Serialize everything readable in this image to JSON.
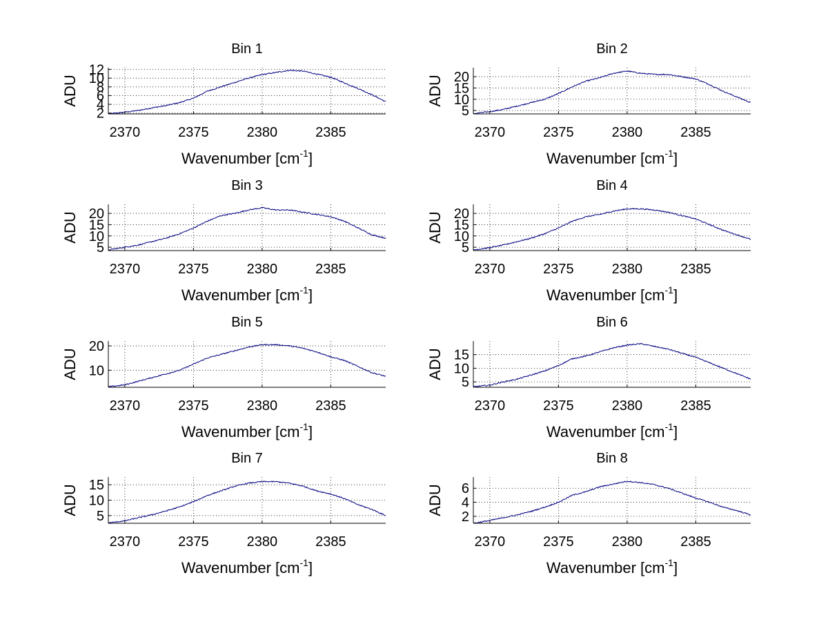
{
  "chart_data": [
    {
      "type": "line",
      "title": "Bin 1",
      "xlabel": "Wavenumber [cm",
      "xlabel_superscript": "-1",
      "xlabel_suffix": "]",
      "ylabel": "ADU",
      "xlim": [
        2368.8,
        2389
      ],
      "ylim": [
        1.8,
        12.4
      ],
      "xticks": [
        2370,
        2375,
        2380,
        2385
      ],
      "yticks": [
        2,
        4,
        6,
        8,
        10,
        12
      ],
      "grid": true,
      "series": [
        {
          "name": "Bin 1",
          "color": "#000080",
          "x": [
            2368.8,
            2370,
            2371,
            2372,
            2373,
            2374,
            2375,
            2376,
            2377,
            2378,
            2379,
            2380,
            2381,
            2382,
            2383,
            2384,
            2385,
            2386,
            2387,
            2388,
            2389
          ],
          "y": [
            1.8,
            2.2,
            2.6,
            3.2,
            3.7,
            4.4,
            5.4,
            7.0,
            8.0,
            9.0,
            10.0,
            10.8,
            11.3,
            11.8,
            11.6,
            10.9,
            10.2,
            8.9,
            7.6,
            6.2,
            4.6
          ]
        }
      ]
    },
    {
      "type": "line",
      "title": "Bin 2",
      "xlabel": "Wavenumber [cm",
      "xlabel_superscript": "-1",
      "xlabel_suffix": "]",
      "ylabel": "ADU",
      "xlim": [
        2368.8,
        2389
      ],
      "ylim": [
        3.5,
        24
      ],
      "xticks": [
        2370,
        2375,
        2380,
        2385
      ],
      "yticks": [
        5,
        10,
        15,
        20
      ],
      "grid": true,
      "series": [
        {
          "name": "Bin 2",
          "color": "#000080",
          "x": [
            2368.8,
            2370,
            2371,
            2372,
            2373,
            2374,
            2375,
            2376,
            2377,
            2378,
            2379,
            2380,
            2381,
            2382,
            2383,
            2384,
            2385,
            2386,
            2387,
            2388,
            2389
          ],
          "y": [
            3.6,
            4.5,
            5.5,
            7.0,
            8.5,
            10.0,
            12.5,
            15.5,
            18.0,
            19.5,
            21.5,
            22.5,
            21.5,
            21.0,
            21.0,
            20.0,
            19.0,
            16.5,
            13.5,
            11.0,
            8.5
          ]
        }
      ]
    },
    {
      "type": "line",
      "title": "Bin 3",
      "xlabel": "Wavenumber [cm",
      "xlabel_superscript": "-1",
      "xlabel_suffix": "]",
      "ylabel": "ADU",
      "xlim": [
        2368.8,
        2389
      ],
      "ylim": [
        3.5,
        24
      ],
      "xticks": [
        2370,
        2375,
        2380,
        2385
      ],
      "yticks": [
        5,
        10,
        15,
        20
      ],
      "grid": true,
      "series": [
        {
          "name": "Bin 3",
          "color": "#000080",
          "x": [
            2368.8,
            2370,
            2371,
            2372,
            2373,
            2374,
            2375,
            2376,
            2377,
            2378,
            2379,
            2380,
            2381,
            2382,
            2383,
            2384,
            2385,
            2386,
            2387,
            2388,
            2389
          ],
          "y": [
            3.8,
            5.0,
            6.0,
            7.5,
            9.0,
            11.0,
            13.5,
            16.5,
            19.0,
            20.0,
            21.5,
            22.5,
            21.5,
            21.5,
            20.5,
            19.5,
            18.5,
            16.5,
            13.5,
            10.5,
            9.0
          ]
        }
      ]
    },
    {
      "type": "line",
      "title": "Bin 4",
      "xlabel": "Wavenumber [cm",
      "xlabel_superscript": "-1",
      "xlabel_suffix": "]",
      "ylabel": "ADU",
      "xlim": [
        2368.8,
        2389
      ],
      "ylim": [
        3.5,
        24
      ],
      "xticks": [
        2370,
        2375,
        2380,
        2385
      ],
      "yticks": [
        5,
        10,
        15,
        20
      ],
      "grid": true,
      "series": [
        {
          "name": "Bin 4",
          "color": "#000080",
          "x": [
            2368.8,
            2370,
            2371,
            2372,
            2373,
            2374,
            2375,
            2376,
            2377,
            2378,
            2379,
            2380,
            2381,
            2382,
            2383,
            2384,
            2385,
            2386,
            2387,
            2388,
            2389
          ],
          "y": [
            3.8,
            4.8,
            6.0,
            7.5,
            9.0,
            11.0,
            13.5,
            16.5,
            18.5,
            19.5,
            21.0,
            22.0,
            22.0,
            21.5,
            20.5,
            19.0,
            17.5,
            15.0,
            12.5,
            10.5,
            8.5
          ]
        }
      ]
    },
    {
      "type": "line",
      "title": "Bin 5",
      "xlabel": "Wavenumber [cm",
      "xlabel_superscript": "-1",
      "xlabel_suffix": "]",
      "ylabel": "ADU",
      "xlim": [
        2368.8,
        2389
      ],
      "ylim": [
        3,
        22
      ],
      "xticks": [
        2370,
        2375,
        2380,
        2385
      ],
      "yticks": [
        10,
        20
      ],
      "grid": true,
      "series": [
        {
          "name": "Bin 5",
          "color": "#000080",
          "x": [
            2368.8,
            2370,
            2371,
            2372,
            2373,
            2374,
            2375,
            2376,
            2377,
            2378,
            2379,
            2380,
            2381,
            2382,
            2383,
            2384,
            2385,
            2386,
            2387,
            2388,
            2389
          ],
          "y": [
            3.2,
            4.0,
            5.5,
            7.0,
            8.5,
            10.0,
            12.5,
            15.0,
            16.5,
            18.0,
            19.5,
            20.5,
            20.5,
            20.0,
            19.0,
            17.5,
            15.5,
            14.0,
            11.5,
            9.0,
            7.5
          ]
        }
      ]
    },
    {
      "type": "line",
      "title": "Bin 6",
      "xlabel": "Wavenumber [cm",
      "xlabel_superscript": "-1",
      "xlabel_suffix": "]",
      "ylabel": "ADU",
      "xlim": [
        2368.8,
        2389
      ],
      "ylim": [
        3,
        20
      ],
      "xticks": [
        2370,
        2375,
        2380,
        2385
      ],
      "yticks": [
        5,
        10,
        15
      ],
      "grid": true,
      "series": [
        {
          "name": "Bin 6",
          "color": "#000080",
          "x": [
            2368.8,
            2370,
            2371,
            2372,
            2373,
            2374,
            2375,
            2376,
            2377,
            2378,
            2379,
            2380,
            2381,
            2382,
            2383,
            2384,
            2385,
            2386,
            2387,
            2388,
            2389
          ],
          "y": [
            3.2,
            3.8,
            5.0,
            6.0,
            7.5,
            9.0,
            11.0,
            13.5,
            14.5,
            16.0,
            17.5,
            18.5,
            19.0,
            18.0,
            17.0,
            15.5,
            14.0,
            12.0,
            10.0,
            8.0,
            6.0
          ]
        }
      ]
    },
    {
      "type": "line",
      "title": "Bin 7",
      "xlabel": "Wavenumber [cm",
      "xlabel_superscript": "-1",
      "xlabel_suffix": "]",
      "ylabel": "ADU",
      "xlim": [
        2368.8,
        2389
      ],
      "ylim": [
        2.5,
        17.5
      ],
      "xticks": [
        2370,
        2375,
        2380,
        2385
      ],
      "yticks": [
        5,
        10,
        15
      ],
      "grid": true,
      "series": [
        {
          "name": "Bin 7",
          "color": "#000080",
          "x": [
            2368.8,
            2370,
            2371,
            2372,
            2373,
            2374,
            2375,
            2376,
            2377,
            2378,
            2379,
            2380,
            2381,
            2382,
            2383,
            2384,
            2385,
            2386,
            2387,
            2388,
            2389
          ],
          "y": [
            2.6,
            3.3,
            4.3,
            5.3,
            6.5,
            7.8,
            9.5,
            11.5,
            13.0,
            14.5,
            15.5,
            16.0,
            16.0,
            15.5,
            14.5,
            13.0,
            12.0,
            10.5,
            8.5,
            7.0,
            5.0
          ]
        }
      ]
    },
    {
      "type": "line",
      "title": "Bin 8",
      "xlabel": "Wavenumber [cm",
      "xlabel_superscript": "-1",
      "xlabel_suffix": "]",
      "ylabel": "ADU",
      "xlim": [
        2368.8,
        2389
      ],
      "ylim": [
        1,
        7.6
      ],
      "xticks": [
        2370,
        2375,
        2380,
        2385
      ],
      "yticks": [
        2,
        4,
        6
      ],
      "grid": true,
      "series": [
        {
          "name": "Bin 8",
          "color": "#000080",
          "x": [
            2368.8,
            2370,
            2371,
            2372,
            2373,
            2374,
            2375,
            2376,
            2377,
            2378,
            2379,
            2380,
            2381,
            2382,
            2383,
            2384,
            2385,
            2386,
            2387,
            2388,
            2389
          ],
          "y": [
            1.0,
            1.4,
            1.8,
            2.2,
            2.7,
            3.3,
            4.0,
            5.0,
            5.5,
            6.2,
            6.6,
            7.0,
            6.8,
            6.5,
            6.0,
            5.3,
            4.6,
            4.0,
            3.3,
            2.8,
            2.2
          ]
        }
      ]
    }
  ]
}
